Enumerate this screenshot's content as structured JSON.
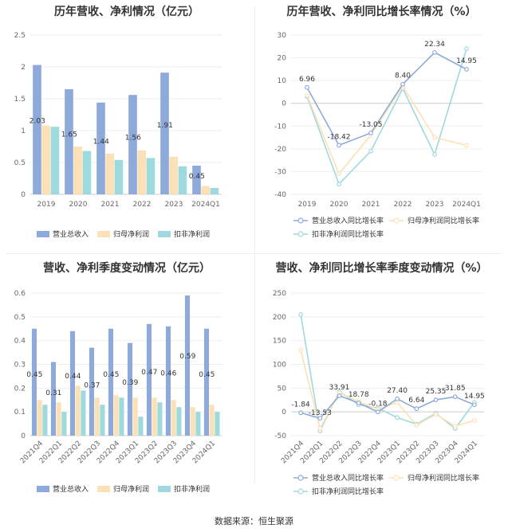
{
  "source_text": "数据来源：恒生聚源",
  "colors": {
    "revenue": "#8eaadb",
    "net_profit": "#fde1b6",
    "deducted_profit": "#9ed9de",
    "axis_text": "#666666",
    "grid": "#eeeeee"
  },
  "chart_data": [
    {
      "type": "bar",
      "title": "历年营收、净利情况（亿元）",
      "categories": [
        "2019",
        "2020",
        "2021",
        "2022",
        "2023",
        "2024Q1"
      ],
      "ylim": [
        0,
        2.5
      ],
      "yticks": [
        "0",
        "0.5",
        "1",
        "1.5",
        "2",
        "2.5"
      ],
      "series": [
        {
          "name": "营业总收入",
          "values": [
            2.03,
            1.65,
            1.44,
            1.56,
            1.91,
            0.45
          ],
          "labels": [
            "2.03",
            "1.65",
            "1.44",
            "1.56",
            "1.91",
            "0.45"
          ]
        },
        {
          "name": "归母净利润",
          "values": [
            1.08,
            0.75,
            0.64,
            0.69,
            0.59,
            0.13
          ]
        },
        {
          "name": "扣非净利润",
          "values": [
            1.06,
            0.68,
            0.54,
            0.57,
            0.44,
            0.1
          ]
        }
      ],
      "legend": "bottom",
      "grid": true
    },
    {
      "type": "line",
      "title": "历年营收、净利同比增长率情况（%）",
      "categories": [
        "2019",
        "2020",
        "2021",
        "2022",
        "2023",
        "2024Q1"
      ],
      "ylim": [
        -40,
        30
      ],
      "yticks": [
        "-40",
        "-30",
        "-20",
        "-10",
        "0",
        "10",
        "20",
        "30"
      ],
      "series": [
        {
          "name": "营业总收入同比增长率",
          "values": [
            6.96,
            -18.42,
            -13.05,
            8.4,
            22.34,
            14.95
          ],
          "labels": [
            "6.96",
            "-18.42",
            "-13.05",
            "8.40",
            "22.34",
            "14.95"
          ]
        },
        {
          "name": "归母净利润同比增长率",
          "values": [
            3.5,
            -31.0,
            -14.0,
            7.5,
            -15.0,
            -18.5
          ]
        },
        {
          "name": "扣非净利润同比增长率",
          "values": [
            3.0,
            -35.5,
            -21.0,
            6.5,
            -22.5,
            24.0
          ]
        }
      ],
      "legend": "bottom",
      "grid": true
    },
    {
      "type": "bar",
      "title": "营收、净利季度变动情况（亿元）",
      "categories": [
        "2021Q4",
        "2022Q1",
        "2022Q2",
        "2022Q3",
        "2022Q4",
        "2023Q1",
        "2023Q2",
        "2023Q3",
        "2023Q4",
        "2024Q1"
      ],
      "ylim": [
        0,
        0.6
      ],
      "yticks": [
        "0",
        "0.1",
        "0.2",
        "0.3",
        "0.4",
        "0.5",
        "0.6"
      ],
      "series": [
        {
          "name": "营业总收入",
          "values": [
            0.45,
            0.31,
            0.44,
            0.37,
            0.45,
            0.39,
            0.47,
            0.46,
            0.59,
            0.45
          ],
          "labels": [
            "0.45",
            "0.31",
            "0.44",
            "0.37",
            "0.45",
            "0.39",
            "0.47",
            "0.46",
            "0.59",
            "0.45"
          ]
        },
        {
          "name": "归母净利润",
          "values": [
            0.15,
            0.14,
            0.21,
            0.16,
            0.17,
            0.16,
            0.16,
            0.15,
            0.12,
            0.13
          ]
        },
        {
          "name": "扣非净利润",
          "values": [
            0.13,
            0.1,
            0.19,
            0.13,
            0.16,
            0.08,
            0.14,
            0.12,
            0.1,
            0.1
          ]
        }
      ],
      "legend": "bottom",
      "grid": true
    },
    {
      "type": "line",
      "title": "营收、净利同比增长率季度变动情况（%）",
      "categories": [
        "2021Q4",
        "2022Q1",
        "2022Q2",
        "2022Q3",
        "2022Q4",
        "2023Q1",
        "2023Q2",
        "2023Q3",
        "2023Q4",
        "2024Q1"
      ],
      "ylim": [
        -50,
        250
      ],
      "yticks": [
        "-50",
        "0",
        "50",
        "100",
        "150",
        "200",
        "250"
      ],
      "series": [
        {
          "name": "营业总收入同比增长率",
          "values": [
            -1.84,
            -13.53,
            33.91,
            18.78,
            -0.18,
            27.4,
            6.64,
            25.35,
            31.85,
            14.95
          ],
          "labels": [
            "-1.84",
            "-13.53",
            "33.91",
            "18.78",
            "-0.18",
            "27.40",
            "6.64",
            "25.35",
            "31.85",
            "14.95"
          ]
        },
        {
          "name": "归母净利润同比增长率",
          "values": [
            130,
            -35,
            40,
            22,
            5,
            20,
            -28,
            -5,
            -30,
            -18
          ]
        },
        {
          "name": "扣非净利润同比增长率",
          "values": [
            205,
            -40,
            43,
            15,
            8,
            -12,
            -26,
            -3,
            -35,
            20
          ]
        }
      ],
      "legend": "bottom",
      "grid": true
    }
  ]
}
